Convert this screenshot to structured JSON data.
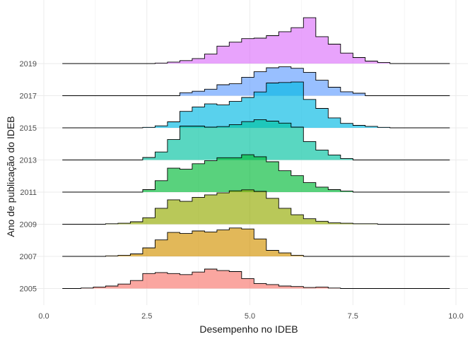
{
  "chart_data": {
    "type": "ridgeline-step",
    "xlabel": "Desempenho no IDEB",
    "ylabel": "Ano de publicação do IDEB",
    "xlim": [
      0,
      10
    ],
    "x_ticks": [
      0.0,
      2.5,
      5.0,
      7.5,
      10.0
    ],
    "x_tick_labels": [
      "0.0",
      "2.5",
      "5.0",
      "7.5",
      "10.0"
    ],
    "grid": true,
    "bin_width": 0.3,
    "x_start": 0.45,
    "x_end": 9.85,
    "ridge_scale": 0.9,
    "series": [
      {
        "name": "2005",
        "color": "#F8766D",
        "baseline": 0,
        "bins": [
          [
            0.9,
            0.01
          ],
          [
            1.2,
            0.03
          ],
          [
            1.5,
            0.05
          ],
          [
            1.8,
            0.09
          ],
          [
            2.1,
            0.16
          ],
          [
            2.4,
            0.3
          ],
          [
            2.7,
            0.32
          ],
          [
            3.0,
            0.3
          ],
          [
            3.3,
            0.28
          ],
          [
            3.6,
            0.33
          ],
          [
            3.9,
            0.39
          ],
          [
            4.2,
            0.36
          ],
          [
            4.5,
            0.34
          ],
          [
            4.8,
            0.2
          ],
          [
            5.1,
            0.1
          ],
          [
            5.4,
            0.08
          ],
          [
            5.7,
            0.05
          ],
          [
            6.0,
            0.04
          ],
          [
            6.3,
            0.02
          ],
          [
            6.6,
            0.03
          ],
          [
            6.9,
            0.01
          ]
        ]
      },
      {
        "name": "2007",
        "color": "#D39200",
        "baseline": 1,
        "bins": [
          [
            1.5,
            0.01
          ],
          [
            1.8,
            0.02
          ],
          [
            2.1,
            0.05
          ],
          [
            2.4,
            0.17
          ],
          [
            2.7,
            0.33
          ],
          [
            3.0,
            0.48
          ],
          [
            3.3,
            0.46
          ],
          [
            3.6,
            0.51
          ],
          [
            3.9,
            0.49
          ],
          [
            4.2,
            0.53
          ],
          [
            4.5,
            0.57
          ],
          [
            4.8,
            0.55
          ],
          [
            5.1,
            0.35
          ],
          [
            5.4,
            0.12
          ],
          [
            5.7,
            0.07
          ],
          [
            6.0,
            0.02
          ]
        ]
      },
      {
        "name": "2009",
        "color": "#93AA00",
        "baseline": 2,
        "bins": [
          [
            1.5,
            0.01
          ],
          [
            1.8,
            0.02
          ],
          [
            2.1,
            0.05
          ],
          [
            2.4,
            0.13
          ],
          [
            2.7,
            0.32
          ],
          [
            3.0,
            0.49
          ],
          [
            3.3,
            0.46
          ],
          [
            3.6,
            0.54
          ],
          [
            3.9,
            0.59
          ],
          [
            4.2,
            0.63
          ],
          [
            4.5,
            0.67
          ],
          [
            4.8,
            0.69
          ],
          [
            5.1,
            0.66
          ],
          [
            5.4,
            0.52
          ],
          [
            5.7,
            0.32
          ],
          [
            6.0,
            0.19
          ],
          [
            6.3,
            0.11
          ],
          [
            6.6,
            0.06
          ],
          [
            6.9,
            0.03
          ],
          [
            7.2,
            0.02
          ],
          [
            7.5,
            0.01
          ],
          [
            7.8,
            0.01
          ]
        ]
      },
      {
        "name": "2011",
        "color": "#00BA38",
        "baseline": 3,
        "bins": [
          [
            2.4,
            0.05
          ],
          [
            2.7,
            0.23
          ],
          [
            3.0,
            0.48
          ],
          [
            3.3,
            0.46
          ],
          [
            3.6,
            0.57
          ],
          [
            3.9,
            0.63
          ],
          [
            4.2,
            0.69
          ],
          [
            4.5,
            0.69
          ],
          [
            4.8,
            0.75
          ],
          [
            5.1,
            0.71
          ],
          [
            5.4,
            0.61
          ],
          [
            5.7,
            0.43
          ],
          [
            6.0,
            0.33
          ],
          [
            6.3,
            0.19
          ],
          [
            6.6,
            0.1
          ],
          [
            6.9,
            0.05
          ],
          [
            7.2,
            0.02
          ]
        ]
      },
      {
        "name": "2013",
        "color": "#00C19F",
        "baseline": 4,
        "bins": [
          [
            2.4,
            0.05
          ],
          [
            2.7,
            0.16
          ],
          [
            3.0,
            0.41
          ],
          [
            3.3,
            0.68
          ],
          [
            3.6,
            0.68
          ],
          [
            3.9,
            0.66
          ],
          [
            4.2,
            0.67
          ],
          [
            4.5,
            0.71
          ],
          [
            4.8,
            0.77
          ],
          [
            5.1,
            0.81
          ],
          [
            5.4,
            0.78
          ],
          [
            5.7,
            0.74
          ],
          [
            6.0,
            0.66
          ],
          [
            6.3,
            0.37
          ],
          [
            6.6,
            0.2
          ],
          [
            6.9,
            0.1
          ],
          [
            7.2,
            0.03
          ]
        ]
      },
      {
        "name": "2015",
        "color": "#00B9E3",
        "baseline": 5,
        "bins": [
          [
            2.4,
            0.01
          ],
          [
            2.7,
            0.04
          ],
          [
            3.0,
            0.12
          ],
          [
            3.3,
            0.33
          ],
          [
            3.6,
            0.42
          ],
          [
            3.9,
            0.48
          ],
          [
            4.2,
            0.46
          ],
          [
            4.5,
            0.53
          ],
          [
            4.8,
            0.61
          ],
          [
            5.1,
            0.72
          ],
          [
            5.4,
            0.9
          ],
          [
            5.7,
            0.91
          ],
          [
            6.0,
            0.92
          ],
          [
            6.3,
            0.57
          ],
          [
            6.6,
            0.39
          ],
          [
            6.9,
            0.2
          ],
          [
            7.2,
            0.09
          ],
          [
            7.5,
            0.05
          ],
          [
            7.8,
            0.03
          ],
          [
            8.1,
            0.01
          ]
        ]
      },
      {
        "name": "2017",
        "color": "#619CFF",
        "baseline": 6,
        "bins": [
          [
            3.3,
            0.06
          ],
          [
            3.6,
            0.09
          ],
          [
            3.9,
            0.13
          ],
          [
            4.2,
            0.22
          ],
          [
            4.5,
            0.24
          ],
          [
            4.8,
            0.37
          ],
          [
            5.1,
            0.48
          ],
          [
            5.4,
            0.56
          ],
          [
            5.7,
            0.58
          ],
          [
            6.0,
            0.55
          ],
          [
            6.3,
            0.47
          ],
          [
            6.6,
            0.31
          ],
          [
            6.9,
            0.17
          ],
          [
            7.2,
            0.08
          ],
          [
            7.5,
            0.05
          ]
        ]
      },
      {
        "name": "2019",
        "color": "#DB72FB",
        "baseline": 7,
        "bins": [
          [
            2.7,
            0.01
          ],
          [
            3.0,
            0.03
          ],
          [
            3.3,
            0.06
          ],
          [
            3.6,
            0.1
          ],
          [
            3.9,
            0.19
          ],
          [
            4.2,
            0.35
          ],
          [
            4.5,
            0.43
          ],
          [
            4.8,
            0.5
          ],
          [
            5.1,
            0.51
          ],
          [
            5.4,
            0.56
          ],
          [
            5.7,
            0.64
          ],
          [
            6.0,
            0.72
          ],
          [
            6.3,
            0.92
          ],
          [
            6.6,
            0.54
          ],
          [
            6.9,
            0.39
          ],
          [
            7.2,
            0.21
          ],
          [
            7.5,
            0.12
          ],
          [
            7.8,
            0.05
          ],
          [
            8.1,
            0.02
          ]
        ]
      }
    ]
  }
}
